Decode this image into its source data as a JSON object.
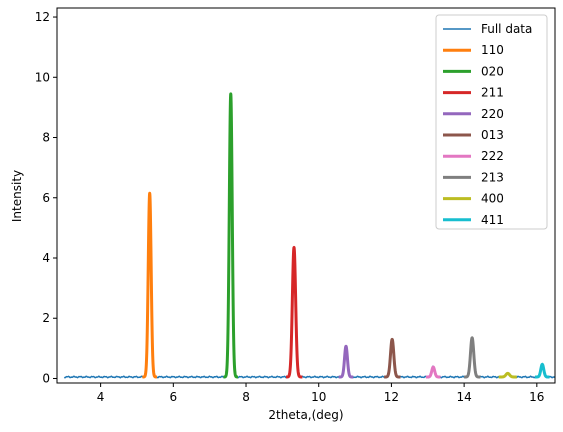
{
  "chart_data": {
    "type": "line",
    "title": "",
    "xlabel": "2theta,(deg)",
    "ylabel": "Intensity",
    "xlim": [
      2.8,
      16.5
    ],
    "ylim": [
      -0.15,
      12.3
    ],
    "xticks": [
      4,
      6,
      8,
      10,
      12,
      14,
      16
    ],
    "yticks": [
      0,
      2,
      4,
      6,
      8,
      10,
      12
    ],
    "grid": false,
    "legend_position": "top-right",
    "baseline": {
      "x_start": 3.0,
      "x_end": 16.5,
      "level": 0.05
    },
    "series": [
      {
        "name": "Full data",
        "color": "#1f77b4",
        "kind": "baseline"
      },
      {
        "name": "110",
        "color": "#ff7f0e",
        "center": 5.35,
        "height": 6.1,
        "window": [
          5.15,
          5.55
        ]
      },
      {
        "name": "020",
        "color": "#2ca02c",
        "center": 7.58,
        "height": 9.4,
        "window": [
          7.38,
          7.78
        ]
      },
      {
        "name": "211",
        "color": "#d62728",
        "center": 9.32,
        "height": 4.3,
        "window": [
          9.1,
          9.55
        ]
      },
      {
        "name": "220",
        "color": "#9467bd",
        "center": 10.75,
        "height": 1.02,
        "window": [
          10.55,
          10.95
        ]
      },
      {
        "name": "013",
        "color": "#8c564b",
        "center": 12.02,
        "height": 1.25,
        "window": [
          11.8,
          12.25
        ]
      },
      {
        "name": "222",
        "color": "#e377c2",
        "center": 13.15,
        "height": 0.33,
        "window": [
          12.95,
          13.35
        ]
      },
      {
        "name": "213",
        "color": "#7f7f7f",
        "center": 14.22,
        "height": 1.3,
        "window": [
          14.0,
          14.45
        ]
      },
      {
        "name": "400",
        "color": "#bcbd22",
        "center": 15.2,
        "height": 0.12,
        "window": [
          14.95,
          15.45
        ]
      },
      {
        "name": "411",
        "color": "#17becf",
        "center": 16.15,
        "height": 0.42,
        "window": [
          15.95,
          16.35
        ]
      }
    ]
  }
}
